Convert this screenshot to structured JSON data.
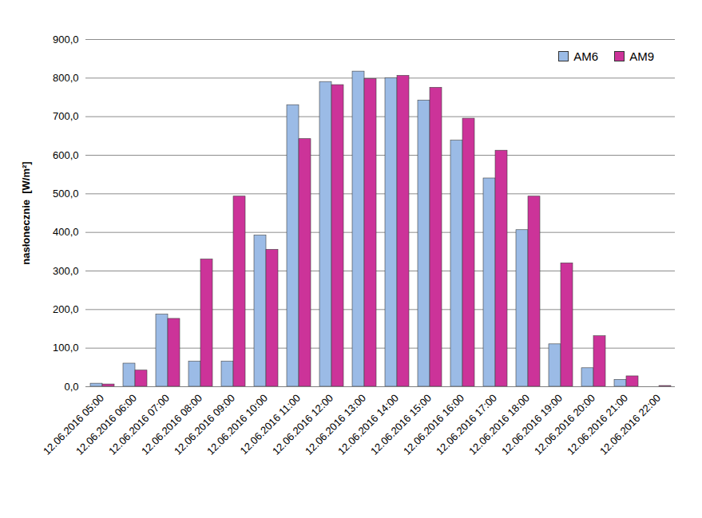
{
  "chart_data": {
    "type": "bar",
    "categories": [
      "12.06.2016 05:00",
      "12.06.2016 06:00",
      "12.06.2016 07:00",
      "12.06.2016 08:00",
      "12.06.2016 09:00",
      "12.06.2016 10:00",
      "12.06.2016 11:00",
      "12.06.2016 12:00",
      "12.06.2016 13:00",
      "12.06.2016 14:00",
      "12.06.2016 15:00",
      "12.06.2016 16:00",
      "12.06.2016 17:00",
      "12.06.2016 18:00",
      "12.06.2016 19:00",
      "12.06.2016 20:00",
      "12.06.2016 21:00",
      "12.06.2016 22:00"
    ],
    "series": [
      {
        "name": "AM6",
        "color": "#9bbbe6",
        "values": [
          8,
          60,
          187,
          65,
          65,
          392,
          730,
          790,
          817,
          800,
          742,
          638,
          540,
          406,
          110,
          48,
          18,
          0
        ]
      },
      {
        "name": "AM9",
        "color": "#cc3399",
        "values": [
          6,
          42,
          176,
          330,
          493,
          355,
          642,
          782,
          798,
          806,
          775,
          695,
          612,
          493,
          320,
          131,
          27,
          2
        ]
      }
    ],
    "y_label": "nasłonecznie  [W/m²]",
    "ylim": [
      0,
      900
    ],
    "yticks": [
      {
        "value": 0,
        "label": "0,0"
      },
      {
        "value": 100,
        "label": "100,0"
      },
      {
        "value": 200,
        "label": "200,0"
      },
      {
        "value": 300,
        "label": "300,0"
      },
      {
        "value": 400,
        "label": "400,0"
      },
      {
        "value": 500,
        "label": "500,0"
      },
      {
        "value": 600,
        "label": "600,0"
      },
      {
        "value": 700,
        "label": "700,0"
      },
      {
        "value": 800,
        "label": "800,0"
      },
      {
        "value": 900,
        "label": "900,0"
      }
    ],
    "grid": true,
    "legend": "top-right"
  }
}
